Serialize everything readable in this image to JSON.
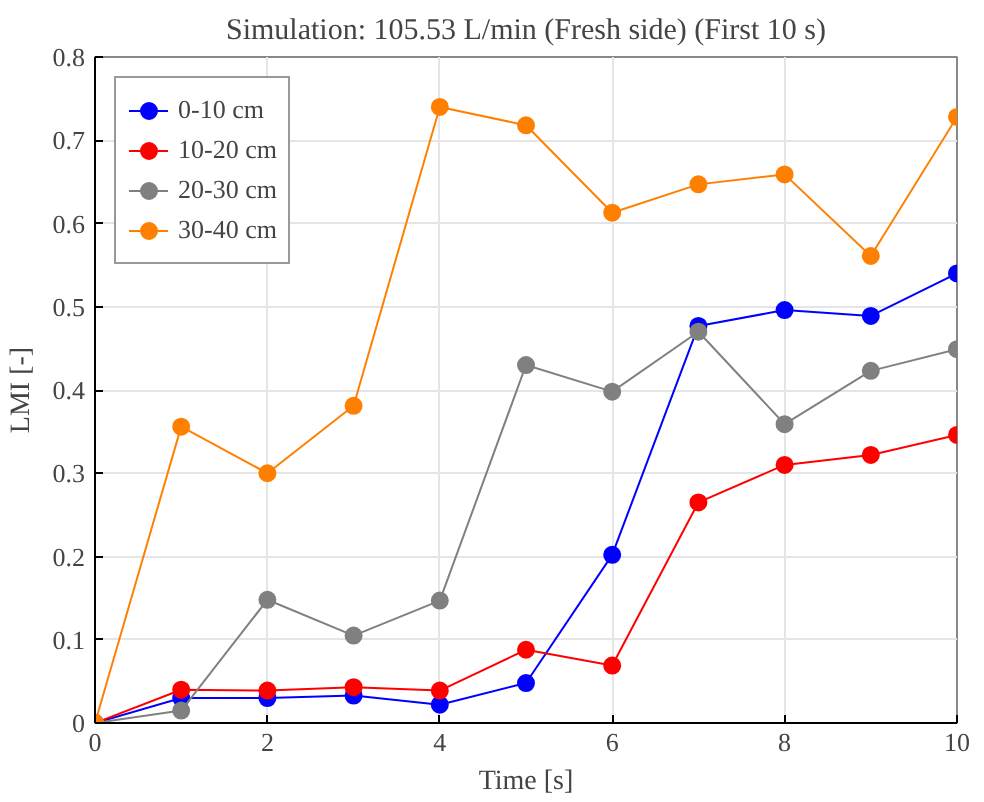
{
  "chart_data": {
    "type": "line",
    "title": "Simulation: 105.53 L/min (Fresh side) (First 10 s)",
    "xlabel": "Time [s]",
    "ylabel": "LMI [-]",
    "x": [
      0,
      1,
      2,
      3,
      4,
      5,
      6,
      7,
      8,
      9,
      10
    ],
    "series": [
      {
        "name": "0-10 cm",
        "color": "#0000ff",
        "values": [
          0,
          0.03,
          0.03,
          0.033,
          0.022,
          0.048,
          0.202,
          0.477,
          0.496,
          0.489,
          0.54
        ]
      },
      {
        "name": "10-20 cm",
        "color": "#ff0000",
        "values": [
          0,
          0.04,
          0.039,
          0.043,
          0.039,
          0.088,
          0.069,
          0.265,
          0.31,
          0.322,
          0.346
        ]
      },
      {
        "name": "20-30 cm",
        "color": "#808080",
        "values": [
          0,
          0.015,
          0.148,
          0.105,
          0.147,
          0.43,
          0.398,
          0.47,
          0.359,
          0.423,
          0.449
        ]
      },
      {
        "name": "30-40 cm",
        "color": "#ff8000",
        "values": [
          0,
          0.356,
          0.3,
          0.381,
          0.74,
          0.718,
          0.613,
          0.647,
          0.659,
          0.561,
          0.728
        ]
      }
    ],
    "xlim": [
      0,
      10
    ],
    "ylim": [
      0,
      0.8
    ],
    "xticks": [
      0,
      2,
      4,
      6,
      8,
      10
    ],
    "yticks": [
      0,
      0.1,
      0.2,
      0.3,
      0.4,
      0.5,
      0.6,
      0.7,
      0.8
    ],
    "grid": true,
    "legend": "top left",
    "marker": "circle",
    "line_style": "solid"
  }
}
